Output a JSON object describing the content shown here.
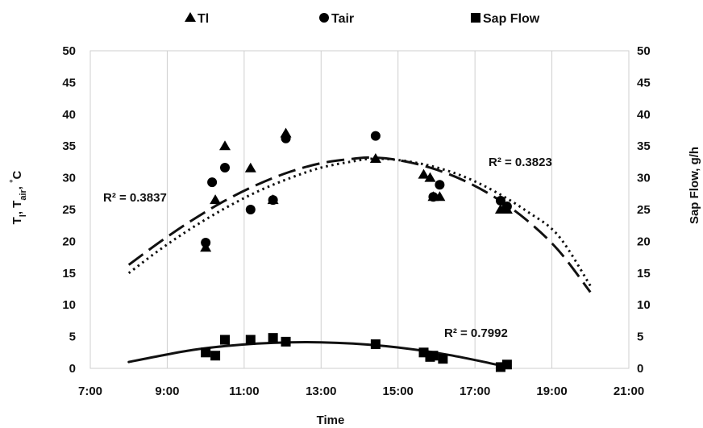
{
  "chart_data": {
    "type": "scatter",
    "xlabel": "Time",
    "ylabel_left": "T_l, T_air, °C",
    "ylabel_right": "Sap Flow, g/h",
    "x_range": [
      "7:00",
      "21:00"
    ],
    "x_ticks": [
      "7:00",
      "9:00",
      "11:00",
      "13:00",
      "15:00",
      "17:00",
      "19:00",
      "21:00"
    ],
    "y_left_range": [
      0,
      50
    ],
    "y_right_range": [
      0,
      50
    ],
    "y_ticks": [
      0,
      5,
      10,
      15,
      20,
      25,
      30,
      35,
      40,
      45,
      50
    ],
    "grid": "vertical",
    "legend_position": "top",
    "series": [
      {
        "name": "Tl",
        "marker": "triangle",
        "axis": "left",
        "points": [
          [
            "10:00",
            19
          ],
          [
            "10:15",
            26.5
          ],
          [
            "10:30",
            35
          ],
          [
            "11:10",
            31.5
          ],
          [
            "11:45",
            26.5
          ],
          [
            "12:05",
            37
          ],
          [
            "14:25",
            33
          ],
          [
            "15:40",
            30.5
          ],
          [
            "15:50",
            30
          ],
          [
            "15:55",
            27
          ],
          [
            "16:05",
            27
          ],
          [
            "17:40",
            25
          ],
          [
            "17:50",
            25
          ]
        ],
        "trendline": {
          "type": "polynomial",
          "style": "dashed",
          "r2_label": "R² = 0.3837",
          "x_range": [
            "8:00",
            "20:00"
          ],
          "y": [
            16.3,
            20,
            23.4,
            26.4,
            28.9,
            30.9,
            32.3,
            33.0,
            33.2,
            32.8,
            31.6,
            29.7,
            27.0,
            23.4,
            18.6,
            12.0
          ],
          "y_x": [
            "8:00",
            "8:50",
            "9:40",
            "10:30",
            "11:20",
            "12:10",
            "13:00",
            "13:50",
            "14:20",
            "15:00",
            "15:50",
            "16:40",
            "17:30",
            "18:20",
            "19:10",
            "20:00"
          ]
        }
      },
      {
        "name": "Tair",
        "marker": "circle",
        "axis": "left",
        "points": [
          [
            "10:00",
            19.8
          ],
          [
            "10:10",
            29.3
          ],
          [
            "10:30",
            31.6
          ],
          [
            "11:10",
            25
          ],
          [
            "11:45",
            26.5
          ],
          [
            "12:05",
            36.2
          ],
          [
            "14:25",
            36.6
          ],
          [
            "15:55",
            27
          ],
          [
            "16:05",
            28.9
          ],
          [
            "17:40",
            26.4
          ],
          [
            "17:50",
            25.5
          ]
        ],
        "trendline": {
          "type": "polynomial",
          "style": "dotted",
          "r2_label": "R² = 0.3823",
          "x_range": [
            "8:00",
            "20:00"
          ],
          "y": [
            15,
            18.8,
            22.2,
            25.2,
            27.8,
            29.9,
            31.6,
            32.6,
            33.0,
            32.8,
            31.9,
            30.3,
            27.9,
            24.8,
            20.9,
            13.0
          ],
          "y_x": [
            "8:00",
            "8:50",
            "9:40",
            "10:30",
            "11:20",
            "12:10",
            "13:00",
            "13:50",
            "14:20",
            "15:00",
            "15:50",
            "16:40",
            "17:30",
            "18:20",
            "19:10",
            "20:00"
          ]
        }
      },
      {
        "name": "Sap Flow",
        "marker": "square",
        "axis": "right",
        "points": [
          [
            "10:00",
            2.5
          ],
          [
            "10:15",
            2
          ],
          [
            "10:30",
            4.5
          ],
          [
            "11:10",
            4.5
          ],
          [
            "11:45",
            4.8
          ],
          [
            "12:05",
            4.2
          ],
          [
            "14:25",
            3.8
          ],
          [
            "15:40",
            2.5
          ],
          [
            "15:50",
            1.8
          ],
          [
            "15:55",
            2
          ],
          [
            "16:10",
            1.5
          ],
          [
            "17:40",
            0.2
          ],
          [
            "17:50",
            0.6
          ]
        ],
        "trendline": {
          "type": "polynomial",
          "style": "solid",
          "r2_label": "R² = 0.7992",
          "x_range": [
            "8:00",
            "17:50"
          ],
          "y": [
            1.0,
            2.0,
            2.9,
            3.5,
            3.9,
            4.1,
            4.1,
            3.9,
            3.5,
            2.9,
            2.1,
            1.1,
            0.2
          ],
          "y_x": [
            "8:00",
            "8:50",
            "9:40",
            "10:30",
            "11:20",
            "12:10",
            "13:00",
            "13:50",
            "14:40",
            "15:30",
            "16:20",
            "17:10",
            "17:50"
          ]
        }
      }
    ]
  }
}
